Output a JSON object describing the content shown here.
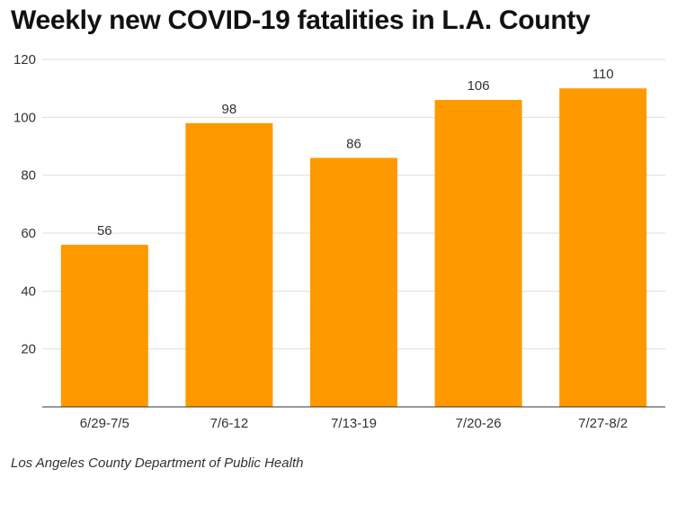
{
  "chart_data": {
    "type": "bar",
    "title": "Weekly new COVID-19 fatalities in L.A. County",
    "categories": [
      "6/29-7/5",
      "7/6-12",
      "7/13-19",
      "7/20-26",
      "7/27-8/2"
    ],
    "values": [
      56,
      98,
      86,
      106,
      110
    ],
    "data_labels": [
      "56",
      "98",
      "86",
      "106",
      "110"
    ],
    "ylim": [
      0,
      120
    ],
    "yticks": [
      20,
      40,
      60,
      80,
      100,
      120
    ],
    "ytick_labels": [
      "20",
      "40",
      "60",
      "80",
      "100",
      "120"
    ],
    "grid": true,
    "xlabel": "",
    "ylabel": "",
    "bar_color": "#FF9900",
    "source": "Los Angeles County Department of Public Health"
  }
}
